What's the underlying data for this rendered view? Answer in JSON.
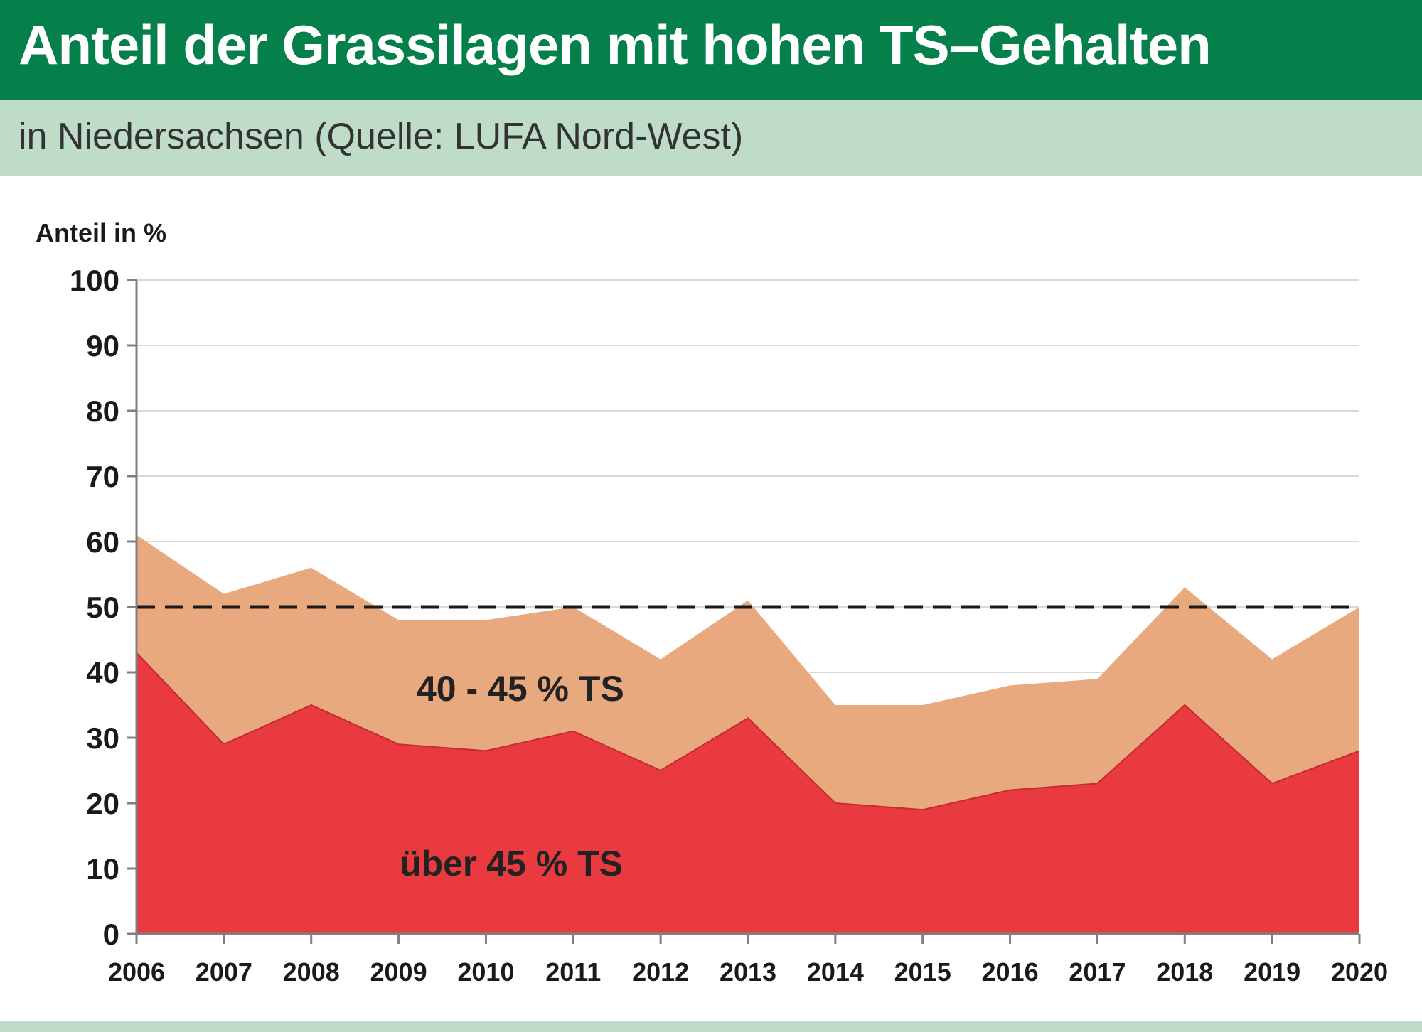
{
  "header": {
    "title": "Anteil der Grassilagen mit hohen TS–Gehalten",
    "subtitle": "in Niedersachsen (Quelle: LUFA Nord-West)"
  },
  "colors": {
    "header_bg": "#06804a",
    "subheader_bg": "#bfdcc9",
    "series_upper": "#e9a97f",
    "series_lower": "#e83a3f",
    "reference_line": "#1a1a1a"
  },
  "chart_data": {
    "type": "area",
    "stacked": true,
    "ylabel": "Anteil in %",
    "xlabel": "",
    "ylim": [
      0,
      100
    ],
    "yticks": [
      0,
      10,
      20,
      30,
      40,
      50,
      60,
      70,
      80,
      90,
      100
    ],
    "grid": true,
    "x": [
      "2006",
      "2007",
      "2008",
      "2009",
      "2010",
      "2011",
      "2012",
      "2013",
      "2014",
      "2015",
      "2016",
      "2017",
      "2018",
      "2019",
      "2020"
    ],
    "series": [
      {
        "name": "über 45 % TS",
        "values": [
          43,
          29,
          35,
          29,
          28,
          31,
          25,
          33,
          20,
          19,
          22,
          23,
          35,
          23,
          28
        ]
      },
      {
        "name": "40 - 45 % TS",
        "values": [
          18,
          23,
          21,
          19,
          20,
          19,
          17,
          18,
          15,
          16,
          16,
          16,
          18,
          19,
          22
        ]
      }
    ],
    "reference_line": {
      "y": 50,
      "style": "dashed"
    }
  }
}
